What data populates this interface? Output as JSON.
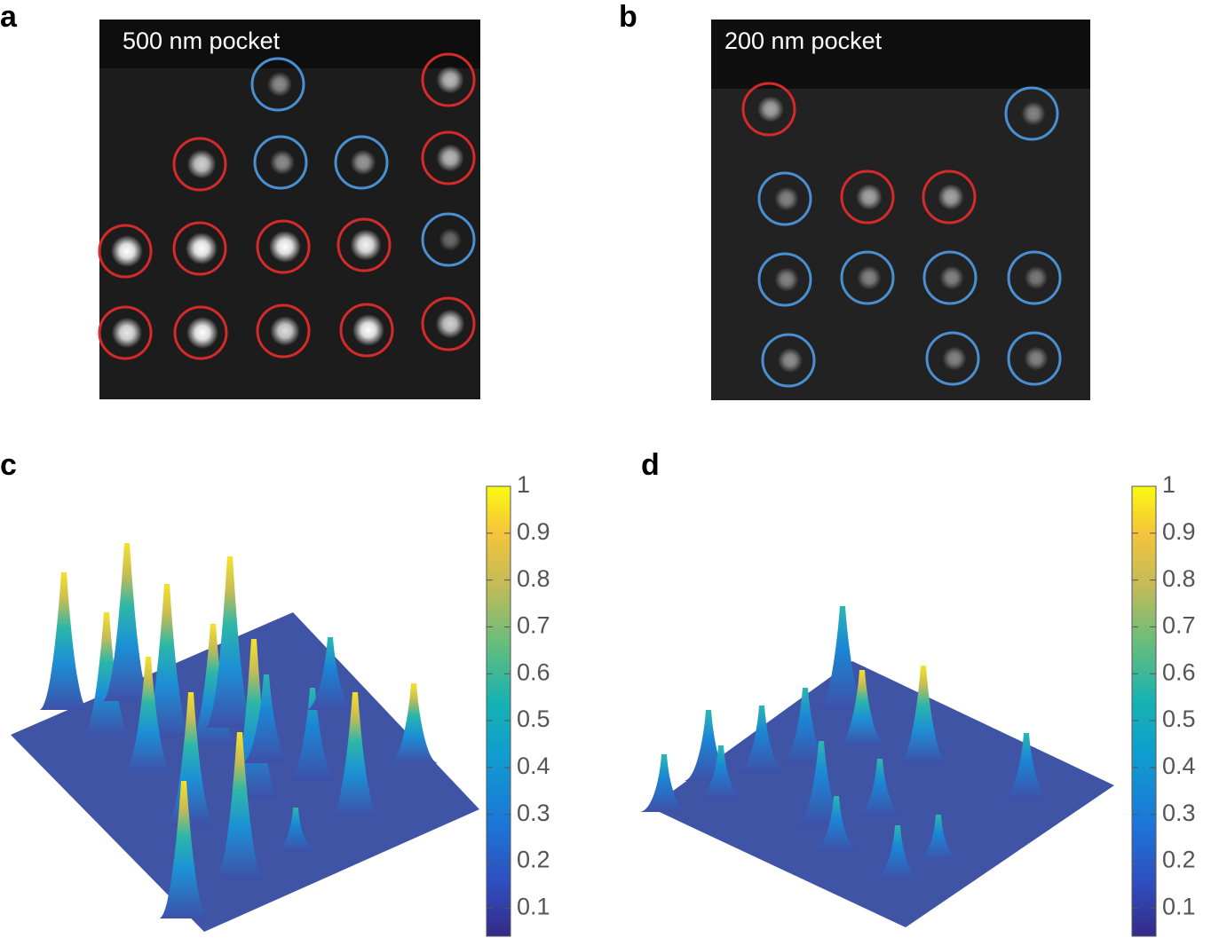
{
  "panels": [
    {
      "label": "a",
      "title": "500 nm pocket"
    },
    {
      "label": "b",
      "title": "200 nm pocket"
    },
    {
      "label": "c",
      "colorbar": {
        "lim": [
          0.04,
          1
        ],
        "ticks": [
          0.1,
          0.2,
          0.3,
          0.4,
          0.5,
          0.6,
          0.7,
          0.8,
          0.9,
          1
        ]
      }
    },
    {
      "label": "d",
      "colorbar": {
        "lim": [
          0.04,
          1
        ],
        "ticks": [
          0.1,
          0.2,
          0.3,
          0.4,
          0.5,
          0.6,
          0.7,
          0.8,
          0.9,
          1
        ]
      }
    }
  ]
}
